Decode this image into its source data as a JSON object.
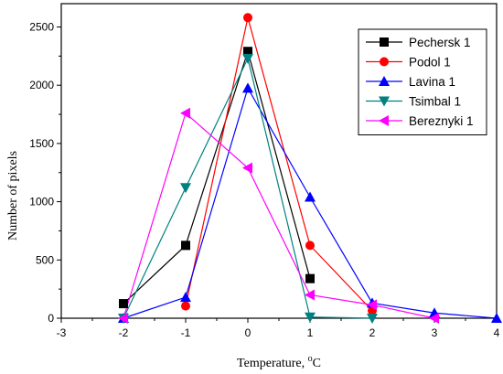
{
  "chart_data": {
    "type": "line",
    "title": "",
    "xlabel": "Temperature, ",
    "xlabel_unit_sup": "o",
    "xlabel_unit": "C",
    "ylabel": "Number of pixels",
    "xlim": [
      -3,
      4
    ],
    "ylim": [
      0,
      2700
    ],
    "xticks": [
      -3,
      -2,
      -1,
      0,
      1,
      2,
      3,
      4
    ],
    "yticks": [
      0,
      500,
      1000,
      1500,
      2000,
      2500
    ],
    "grid": false,
    "legend_position": "top-right",
    "series": [
      {
        "name": "Pechersk 1",
        "color": "#000000",
        "marker": "square",
        "x": [
          -2,
          -1,
          0,
          1
        ],
        "y": [
          125,
          625,
          2290,
          340
        ]
      },
      {
        "name": "Podol 1",
        "color": "#ff0000",
        "marker": "circle",
        "x": [
          -1,
          0,
          1,
          2
        ],
        "y": [
          105,
          2580,
          625,
          65
        ]
      },
      {
        "name": "Lavina 1",
        "color": "#0000ff",
        "marker": "triangle-up",
        "x": [
          -2,
          -1,
          0,
          1,
          2,
          3,
          4
        ],
        "y": [
          0,
          180,
          1975,
          1040,
          130,
          45,
          0
        ]
      },
      {
        "name": "Tsimbal 1",
        "color": "#008080",
        "marker": "triangle-down",
        "x": [
          -2,
          -1,
          0,
          1,
          2
        ],
        "y": [
          0,
          1120,
          2230,
          10,
          0
        ]
      },
      {
        "name": "Bereznyki 1",
        "color": "#ff00ff",
        "marker": "triangle-left",
        "x": [
          -2,
          -1,
          0,
          1,
          2,
          3
        ],
        "y": [
          0,
          1760,
          1290,
          200,
          115,
          0
        ]
      }
    ]
  }
}
